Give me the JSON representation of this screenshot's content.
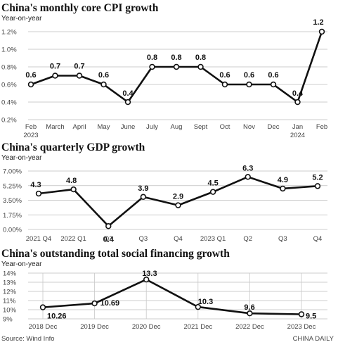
{
  "colors": {
    "line": "#111111",
    "marker_fill": "#ffffff",
    "grid": "#bdbdbd"
  },
  "chart_data": [
    {
      "type": "line",
      "title": "China's monthly core CPI growth",
      "subtitle": "Year-on-year",
      "categories": [
        "Feb\n2023",
        "March",
        "April",
        "May",
        "June",
        "July",
        "Aug",
        "Sept",
        "Oct",
        "Nov",
        "Dec",
        "Jan\n2024",
        "Feb"
      ],
      "values": [
        0.6,
        0.7,
        0.7,
        0.6,
        0.4,
        0.8,
        0.8,
        0.8,
        0.6,
        0.6,
        0.6,
        0.4,
        1.2
      ],
      "data_labels": [
        "0.6",
        "0.7",
        "0.7",
        "0.6",
        "0.4",
        "0.8",
        "0.8",
        "0.8",
        "0.6",
        "0.6",
        "0.6",
        "0.4",
        "1.2"
      ],
      "yticks": [
        "0.2%",
        "0.4%",
        "0.6%",
        "0.8%",
        "1.0%",
        "1.2%"
      ],
      "ylim": [
        0.2,
        1.2
      ],
      "grid": "horizontal"
    },
    {
      "type": "line",
      "title": "China's quarterly GDP growth",
      "subtitle": "Year-on-year",
      "categories": [
        "2021 Q4",
        "2022 Q1",
        "Q2",
        "Q3",
        "Q4",
        "2023 Q1",
        "Q2",
        "Q3",
        "Q4"
      ],
      "values": [
        4.3,
        4.8,
        0.4,
        3.9,
        2.9,
        4.5,
        6.3,
        4.9,
        5.2
      ],
      "data_labels": [
        "4.3",
        "4.8",
        "0.4",
        "3.9",
        "2.9",
        "4.5",
        "6.3",
        "4.9",
        "5.2"
      ],
      "yticks": [
        "0.00%",
        "1.75%",
        "3.50%",
        "5.25%",
        "7.00%"
      ],
      "ylim": [
        0,
        7
      ],
      "grid": "horizontal"
    },
    {
      "type": "line",
      "title": "China's outstanding total social financing growth",
      "subtitle": "Year-on-year",
      "categories": [
        "2018 Dec",
        "2019 Dec",
        "2020 Dec",
        "2021 Dec",
        "2022 Dec",
        "2023 Dec"
      ],
      "values": [
        10.26,
        10.69,
        13.3,
        10.3,
        9.6,
        9.5
      ],
      "data_labels": [
        "10.26",
        "10.69",
        "13.3",
        "10.3",
        "9.6",
        "9.5"
      ],
      "yticks": [
        "9%",
        "10%",
        "11%",
        "12%",
        "13%",
        "14%"
      ],
      "ylim": [
        9,
        14
      ],
      "grid": "horizontal and vertical"
    }
  ],
  "footer": {
    "source": "Source: Wind Info",
    "credit": "CHINA DAILY"
  }
}
